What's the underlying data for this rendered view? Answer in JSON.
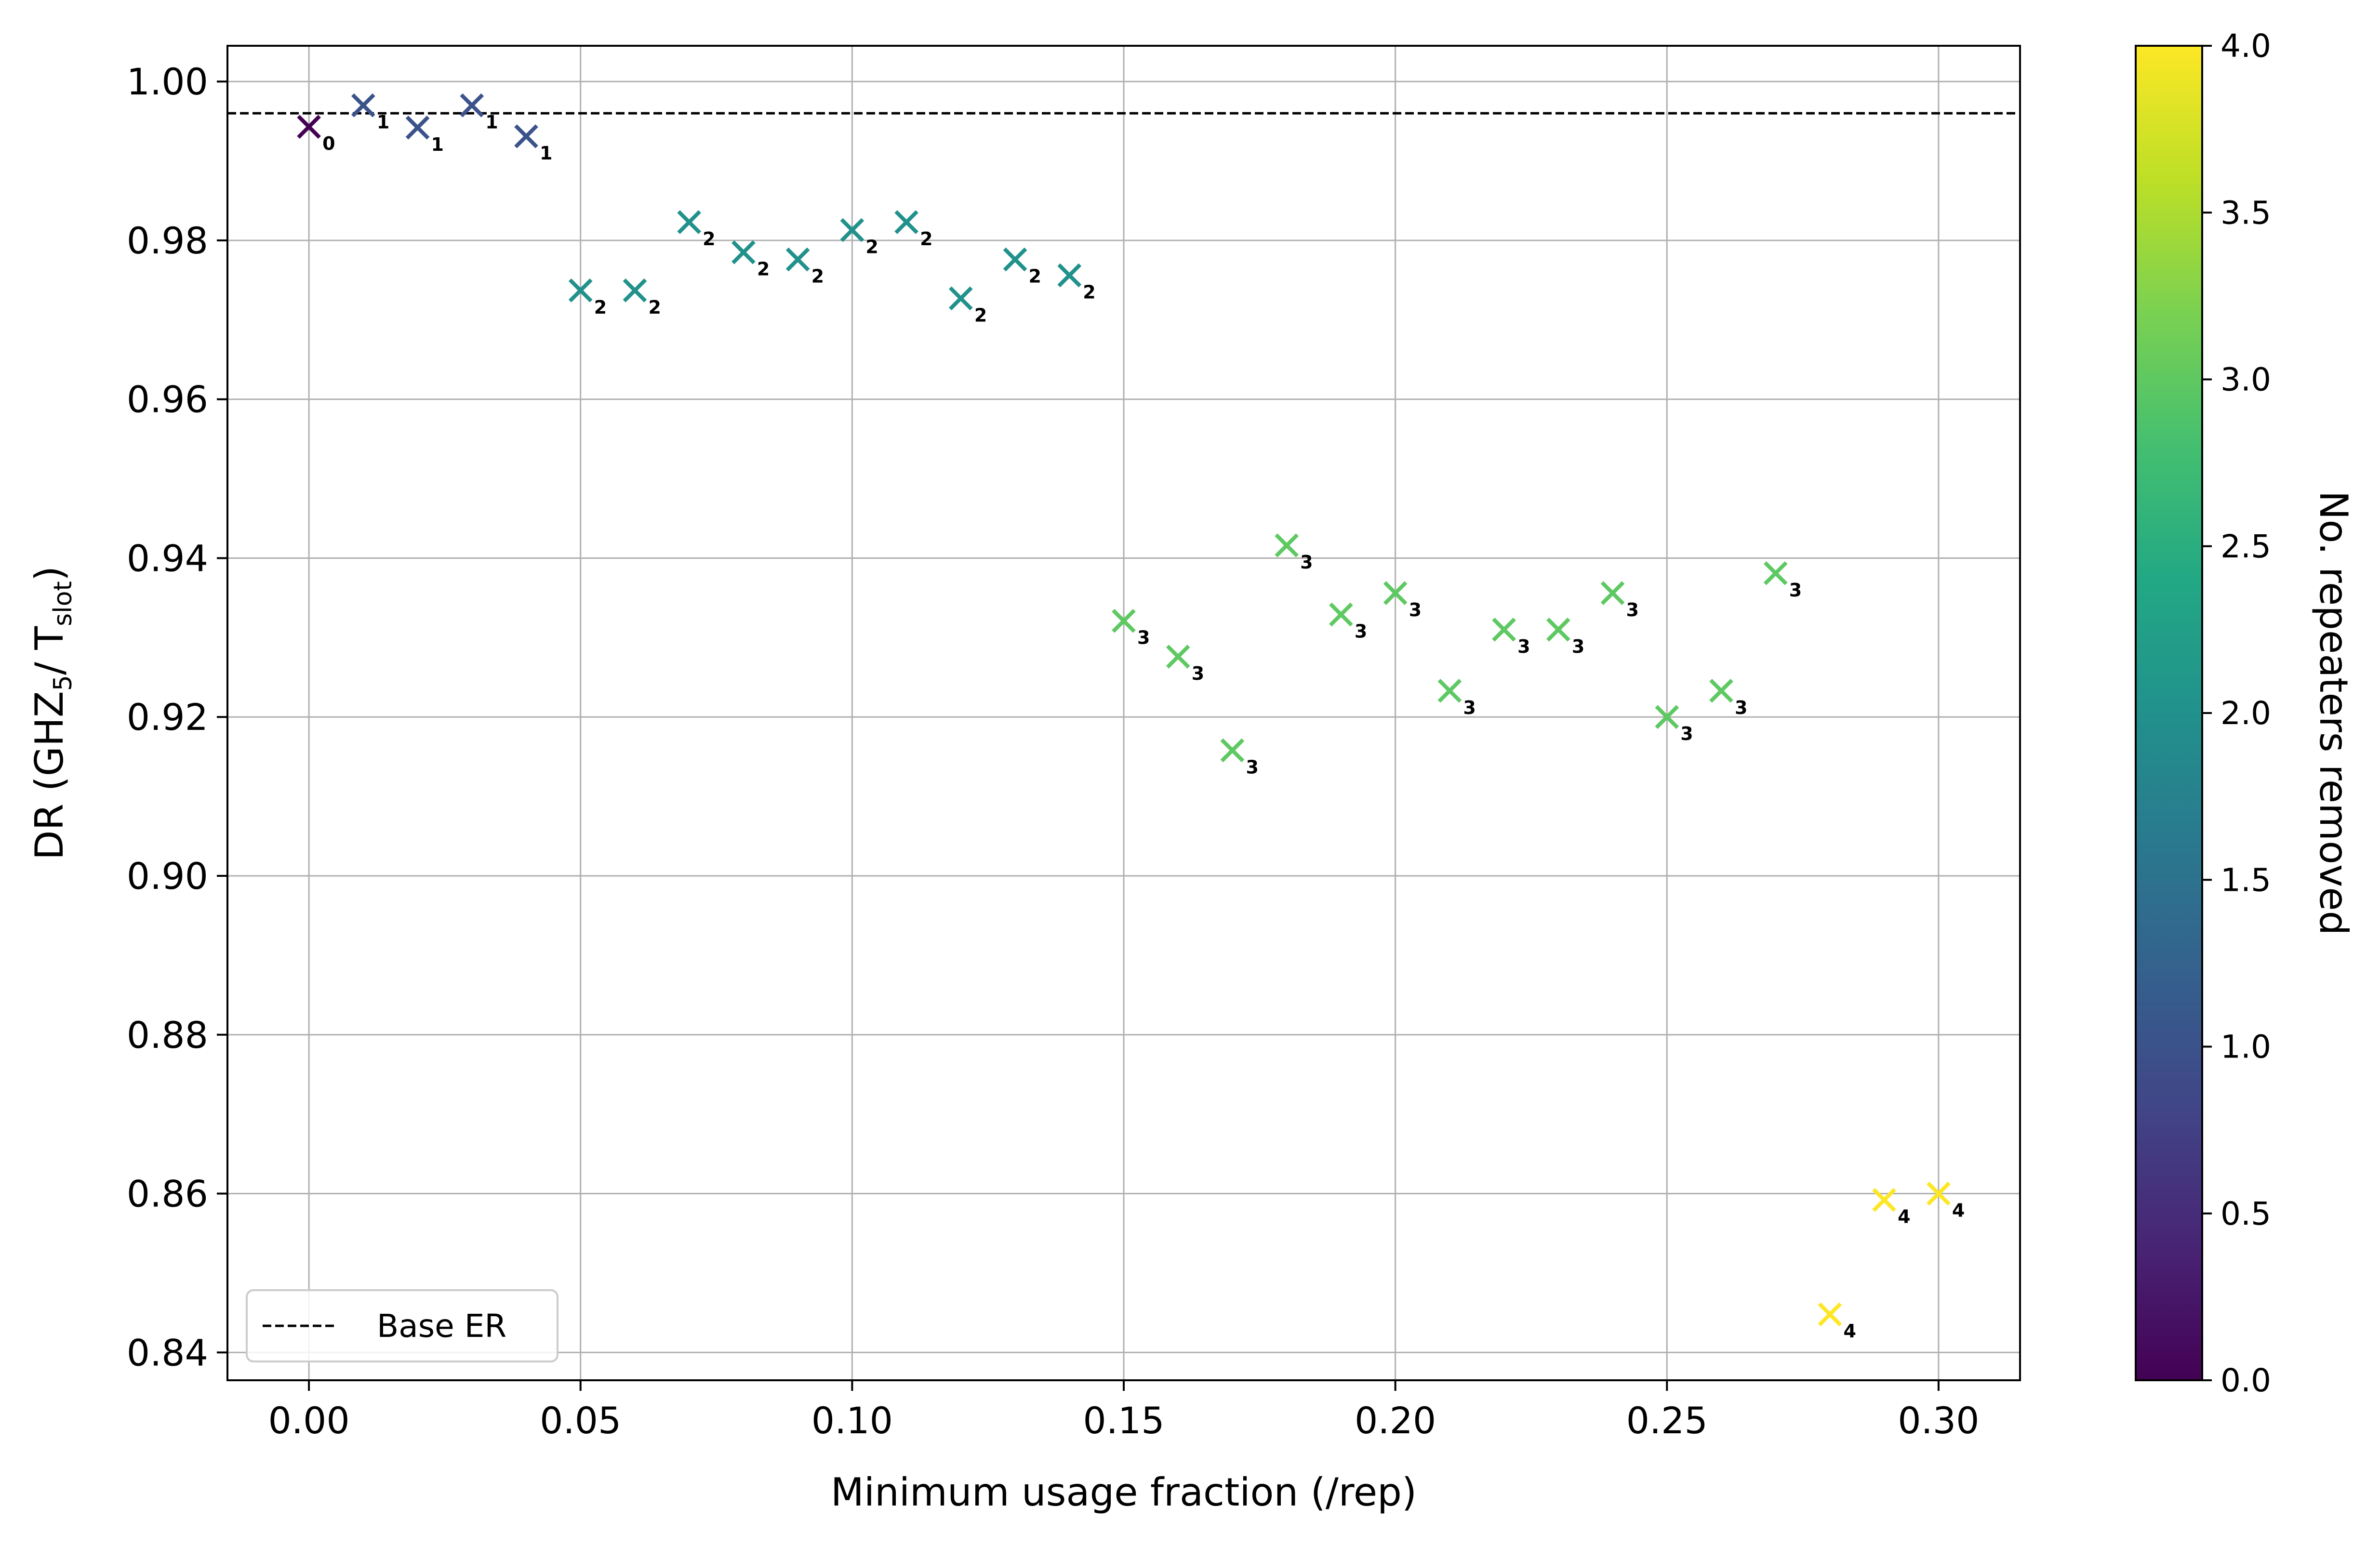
{
  "chart_data": {
    "type": "scatter",
    "xlabel": "Minimum usage fraction (/rep)",
    "ylabel": {
      "prefix": "DR (GHZ",
      "sub1": "5",
      "middle": "/ T",
      "sub2": "slot",
      "suffix": ")"
    },
    "xlim": [
      -0.015,
      0.315
    ],
    "ylim": [
      0.8365,
      1.0045
    ],
    "xticks": [
      "0.00",
      "0.05",
      "0.10",
      "0.15",
      "0.20",
      "0.25",
      "0.30"
    ],
    "yticks": [
      "0.84",
      "0.86",
      "0.88",
      "0.90",
      "0.92",
      "0.94",
      "0.96",
      "0.98",
      "1.00"
    ],
    "grid": true,
    "legend": {
      "position": "bottom-left",
      "entries": [
        {
          "label": "Base ER",
          "style": "dashed black line"
        }
      ]
    },
    "baseline": {
      "name": "Base ER",
      "y": 0.996
    },
    "colorbar": {
      "label": "No. repeaters removed",
      "range": [
        0,
        4
      ],
      "ticks": [
        "0.0",
        "0.5",
        "1.0",
        "1.5",
        "2.0",
        "2.5",
        "3.0",
        "3.5",
        "4.0"
      ],
      "colormap": "viridis"
    },
    "points": [
      {
        "x": 0.0,
        "y": 0.9943,
        "removed": 0,
        "label": "0"
      },
      {
        "x": 0.01,
        "y": 0.997,
        "removed": 1,
        "label": "1"
      },
      {
        "x": 0.02,
        "y": 0.9942,
        "removed": 1,
        "label": "1"
      },
      {
        "x": 0.03,
        "y": 0.997,
        "removed": 1,
        "label": "1"
      },
      {
        "x": 0.04,
        "y": 0.9931,
        "removed": 1,
        "label": "1"
      },
      {
        "x": 0.05,
        "y": 0.9737,
        "removed": 2,
        "label": "2"
      },
      {
        "x": 0.06,
        "y": 0.9737,
        "removed": 2,
        "label": "2"
      },
      {
        "x": 0.07,
        "y": 0.9823,
        "removed": 2,
        "label": "2"
      },
      {
        "x": 0.08,
        "y": 0.9785,
        "removed": 2,
        "label": "2"
      },
      {
        "x": 0.09,
        "y": 0.9776,
        "removed": 2,
        "label": "2"
      },
      {
        "x": 0.1,
        "y": 0.9813,
        "removed": 2,
        "label": "2"
      },
      {
        "x": 0.11,
        "y": 0.9823,
        "removed": 2,
        "label": "2"
      },
      {
        "x": 0.12,
        "y": 0.9727,
        "removed": 2,
        "label": "2"
      },
      {
        "x": 0.13,
        "y": 0.9776,
        "removed": 2,
        "label": "2"
      },
      {
        "x": 0.14,
        "y": 0.9756,
        "removed": 2,
        "label": "2"
      },
      {
        "x": 0.15,
        "y": 0.9321,
        "removed": 3,
        "label": "3"
      },
      {
        "x": 0.16,
        "y": 0.9276,
        "removed": 3,
        "label": "3"
      },
      {
        "x": 0.17,
        "y": 0.9158,
        "removed": 3,
        "label": "3"
      },
      {
        "x": 0.18,
        "y": 0.9416,
        "removed": 3,
        "label": "3"
      },
      {
        "x": 0.19,
        "y": 0.9329,
        "removed": 3,
        "label": "3"
      },
      {
        "x": 0.2,
        "y": 0.9356,
        "removed": 3,
        "label": "3"
      },
      {
        "x": 0.21,
        "y": 0.9233,
        "removed": 3,
        "label": "3"
      },
      {
        "x": 0.22,
        "y": 0.931,
        "removed": 3,
        "label": "3"
      },
      {
        "x": 0.23,
        "y": 0.931,
        "removed": 3,
        "label": "3"
      },
      {
        "x": 0.24,
        "y": 0.9356,
        "removed": 3,
        "label": "3"
      },
      {
        "x": 0.25,
        "y": 0.92,
        "removed": 3,
        "label": "3"
      },
      {
        "x": 0.26,
        "y": 0.9233,
        "removed": 3,
        "label": "3"
      },
      {
        "x": 0.27,
        "y": 0.9381,
        "removed": 3,
        "label": "3"
      },
      {
        "x": 0.28,
        "y": 0.8448,
        "removed": 4,
        "label": "4"
      },
      {
        "x": 0.29,
        "y": 0.8592,
        "removed": 4,
        "label": "4"
      },
      {
        "x": 0.3,
        "y": 0.86,
        "removed": 4,
        "label": "4"
      }
    ],
    "colors": {
      "0": "#440154",
      "1": "#3b528b",
      "2": "#21918c",
      "3": "#5ec962",
      "4": "#fde725",
      "baseline": "#000000",
      "grid": "#b0b0b0"
    }
  }
}
